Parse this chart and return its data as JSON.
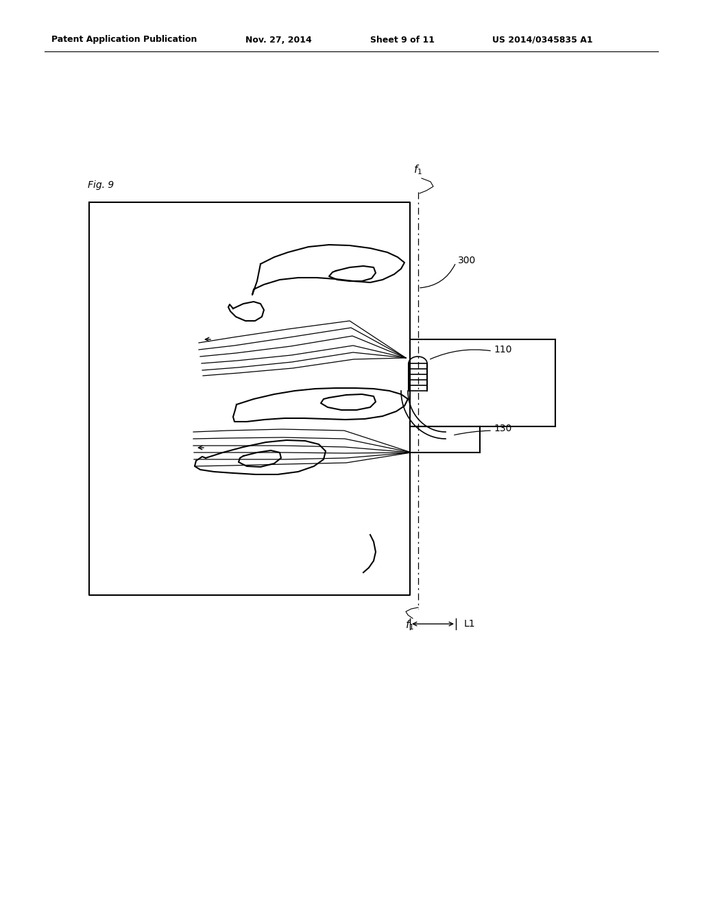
{
  "bg_color": "#ffffff",
  "line_color": "#000000",
  "header_text": "Patent Application Publication",
  "header_date": "Nov. 27, 2014",
  "header_sheet": "Sheet 9 of 11",
  "header_patent": "US 2014/0345835 A1",
  "fig_label": "Fig. 9",
  "label_300": "300",
  "label_110": "110",
  "label_130": "130",
  "label_L1": "L1"
}
